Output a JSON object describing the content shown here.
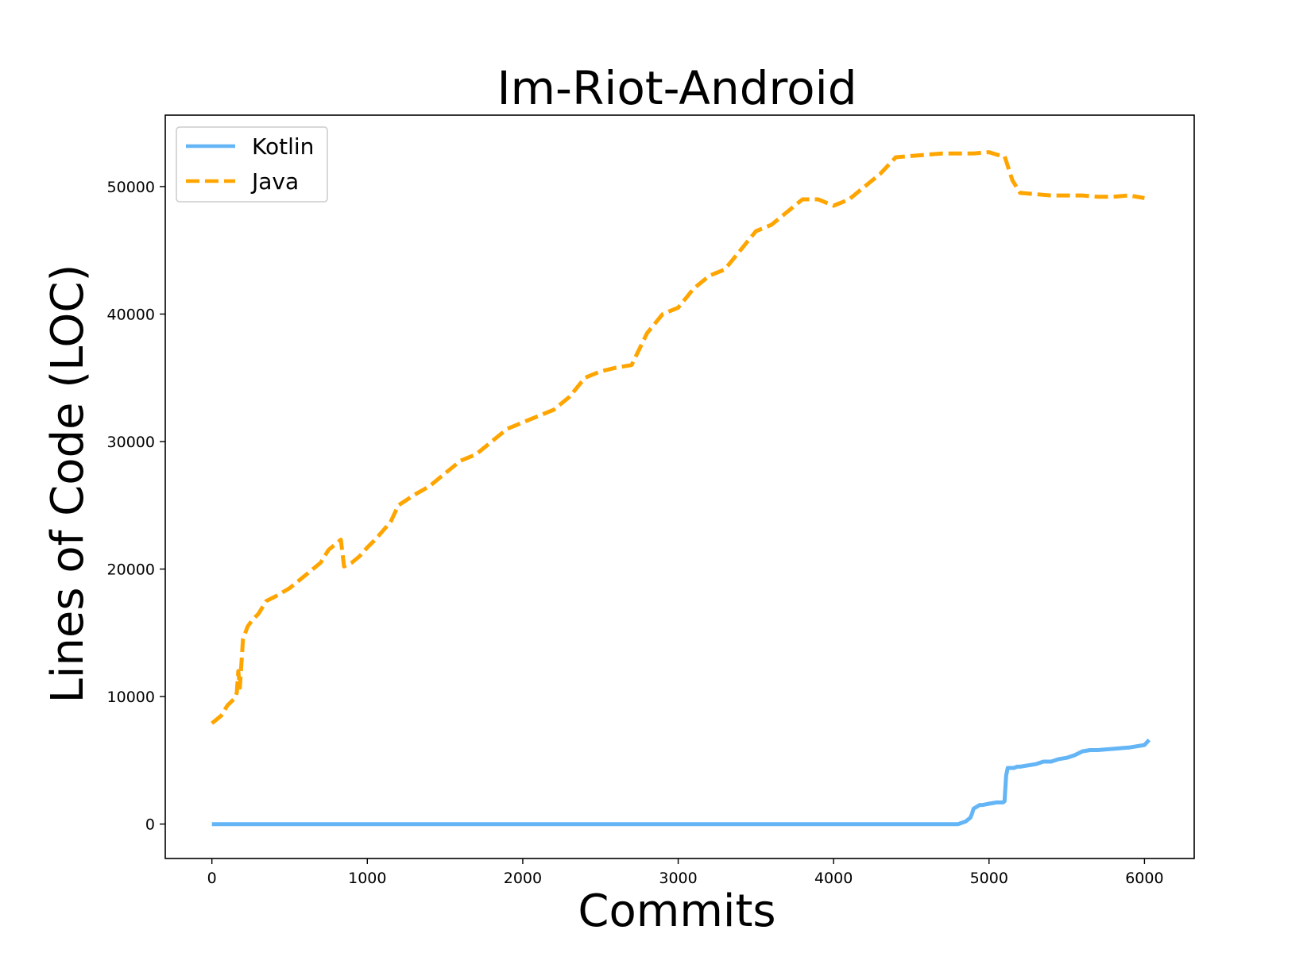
{
  "chart_data": {
    "type": "line",
    "title": "Im-Riot-Android",
    "xlabel": "Commits",
    "ylabel": "Lines of Code (LOC)",
    "xlim": [
      -300,
      6320
    ],
    "ylim": [
      -2700,
      55600
    ],
    "xticks": [
      0,
      1000,
      2000,
      3000,
      4000,
      5000,
      6000
    ],
    "yticks": [
      0,
      10000,
      20000,
      30000,
      40000,
      50000
    ],
    "grid": false,
    "legend_position": "top-left",
    "series": [
      {
        "name": "Kotlin",
        "color": "#64b5f6",
        "style": "solid",
        "x": [
          0,
          500,
          1000,
          1500,
          2000,
          2500,
          3000,
          3500,
          4000,
          4500,
          4800,
          4850,
          4880,
          4890,
          4900,
          4940,
          4960,
          5000,
          5050,
          5090,
          5100,
          5110,
          5120,
          5140,
          5160,
          5180,
          5200,
          5300,
          5350,
          5400,
          5450,
          5500,
          5550,
          5600,
          5650,
          5700,
          5800,
          5900,
          6000,
          6030
        ],
        "y": [
          0,
          0,
          0,
          0,
          0,
          0,
          0,
          0,
          0,
          0,
          0,
          200,
          500,
          800,
          1200,
          1500,
          1500,
          1600,
          1700,
          1700,
          1800,
          3800,
          4400,
          4400,
          4400,
          4500,
          4500,
          4700,
          4900,
          4900,
          5100,
          5200,
          5400,
          5700,
          5800,
          5800,
          5900,
          6000,
          6200,
          6600
        ]
      },
      {
        "name": "Java",
        "color": "#ffa500",
        "style": "dashed",
        "x": [
          0,
          60,
          100,
          150,
          160,
          170,
          180,
          200,
          230,
          260,
          300,
          350,
          400,
          430,
          500,
          550,
          600,
          650,
          700,
          750,
          800,
          830,
          850,
          900,
          950,
          1000,
          1050,
          1100,
          1150,
          1200,
          1300,
          1400,
          1500,
          1600,
          1700,
          1800,
          1850,
          1900,
          2000,
          2100,
          2200,
          2300,
          2400,
          2500,
          2600,
          2700,
          2800,
          2900,
          3000,
          3100,
          3200,
          3300,
          3400,
          3500,
          3600,
          3700,
          3800,
          3900,
          4000,
          4100,
          4200,
          4300,
          4400,
          4500,
          4600,
          4700,
          4800,
          4900,
          5000,
          5050,
          5100,
          5150,
          5200,
          5300,
          5400,
          5500,
          5600,
          5700,
          5800,
          5900,
          6000
        ],
        "y": [
          7900,
          8500,
          9300,
          9900,
          10300,
          12000,
          10700,
          14500,
          15500,
          16000,
          16500,
          17500,
          17800,
          18000,
          18500,
          19000,
          19500,
          20000,
          20500,
          21500,
          22000,
          22300,
          20200,
          20500,
          21000,
          21700,
          22300,
          23000,
          23700,
          25000,
          25800,
          26500,
          27500,
          28500,
          29000,
          30000,
          30500,
          31000,
          31500,
          32000,
          32500,
          33500,
          35000,
          35500,
          35800,
          36000,
          38500,
          40000,
          40500,
          42000,
          43000,
          43500,
          45000,
          46500,
          47000,
          48000,
          49000,
          49000,
          48500,
          49000,
          50000,
          51000,
          52300,
          52400,
          52500,
          52600,
          52600,
          52600,
          52700,
          52500,
          52400,
          50500,
          49500,
          49400,
          49300,
          49300,
          49300,
          49200,
          49200,
          49300,
          49100
        ]
      }
    ]
  }
}
